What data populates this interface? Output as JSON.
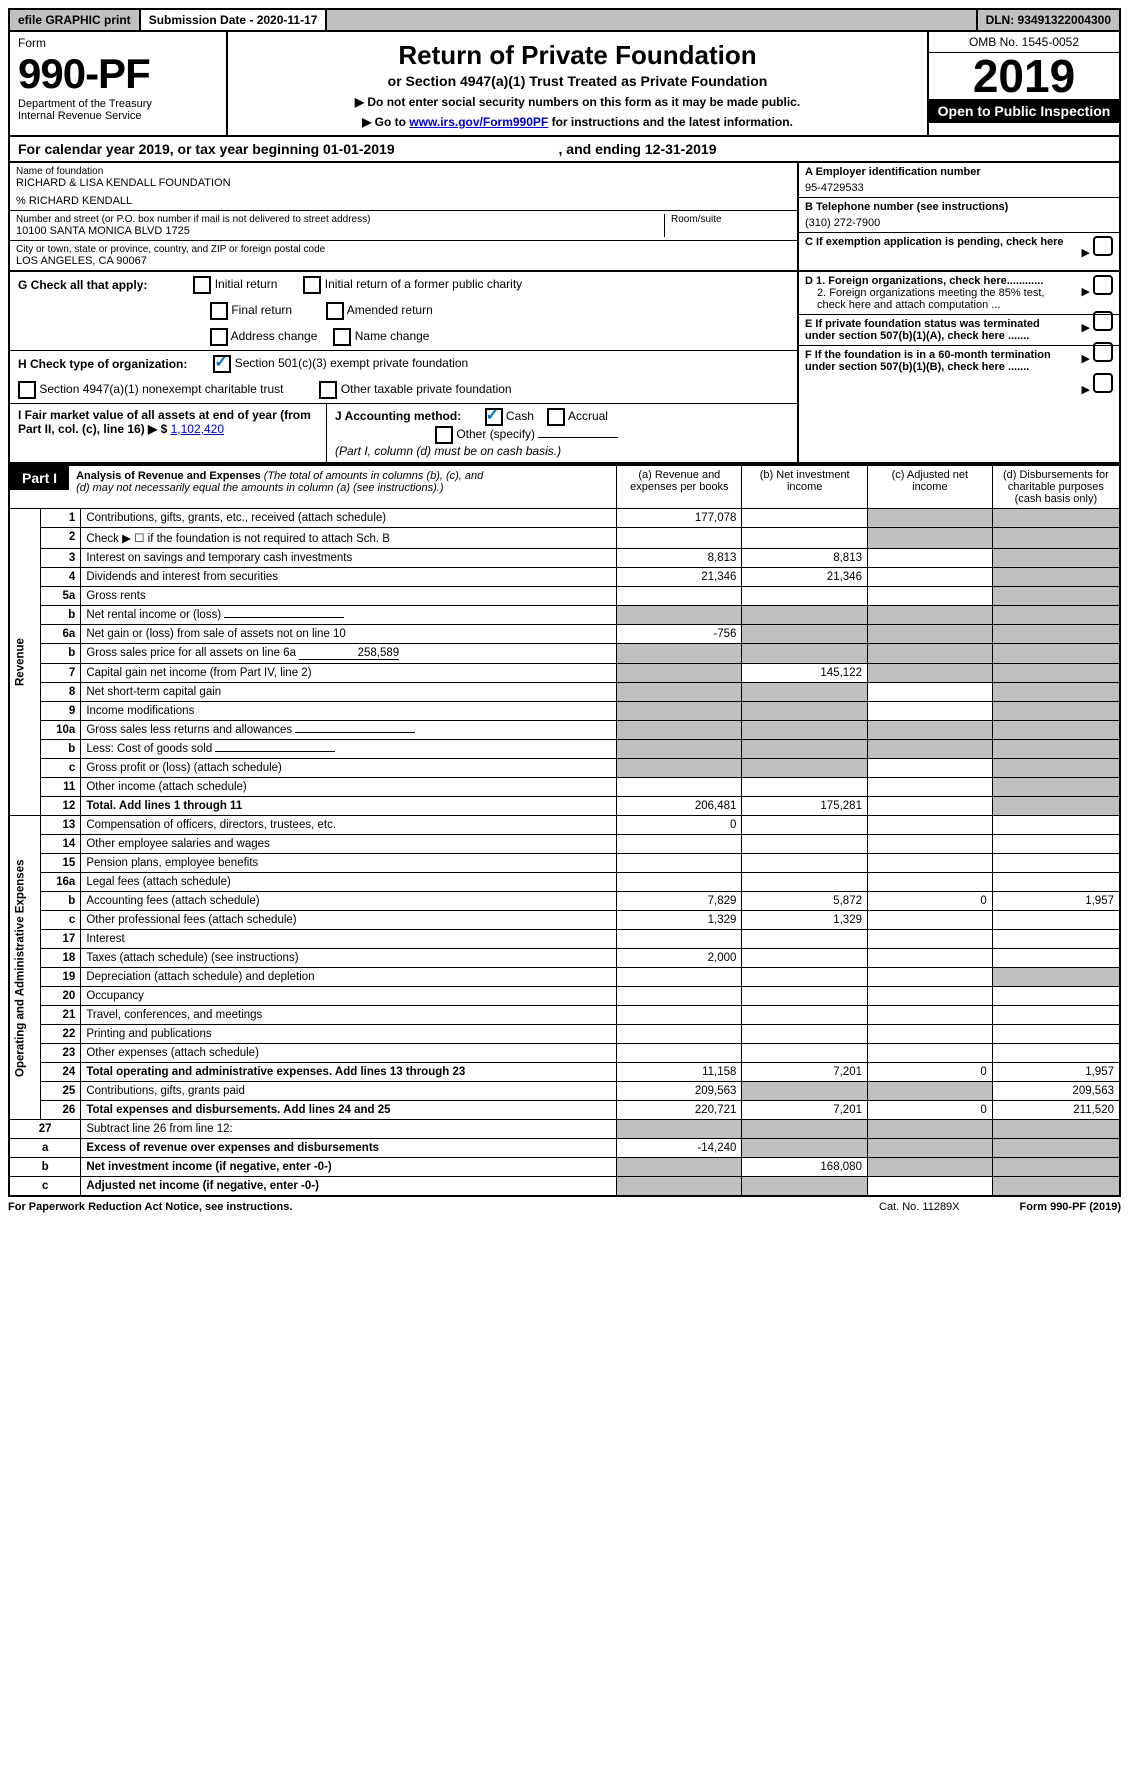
{
  "topbar": {
    "efile": "efile GRAPHIC print",
    "sub_label": "Submission Date - 2020-11-17",
    "dln": "DLN: 93491322004300"
  },
  "header": {
    "form": "Form",
    "form_num": "990-PF",
    "dept": "Department of the Treasury",
    "irs": "Internal Revenue Service",
    "title": "Return of Private Foundation",
    "subtitle": "or Section 4947(a)(1) Trust Treated as Private Foundation",
    "note1": "▶ Do not enter social security numbers on this form as it may be made public.",
    "note2_prefix": "▶ Go to ",
    "note2_link": "www.irs.gov/Form990PF",
    "note2_suffix": " for instructions and the latest information.",
    "omb": "OMB No. 1545-0052",
    "year": "2019",
    "open": "Open to Public Inspection"
  },
  "cal": {
    "text_pre": "For calendar year 2019, or tax year beginning ",
    "begin": "01-01-2019",
    "mid": " , and ending ",
    "end": "12-31-2019"
  },
  "entity": {
    "name_label": "Name of foundation",
    "name": "RICHARD & LISA KENDALL FOUNDATION",
    "care_of": "% RICHARD KENDALL",
    "addr_label": "Number and street (or P.O. box number if mail is not delivered to street address)",
    "addr": "10100 SANTA MONICA BLVD 1725",
    "room_label": "Room/suite",
    "city_label": "City or town, state or province, country, and ZIP or foreign postal code",
    "city": "LOS ANGELES, CA  90067",
    "ein_label": "A Employer identification number",
    "ein": "95-4729533",
    "phone_label": "B Telephone number (see instructions)",
    "phone": "(310) 272-7900",
    "c_label": "C If exemption application is pending, check here"
  },
  "checks": {
    "g_label": "G Check all that apply:",
    "g_opts": [
      "Initial return",
      "Initial return of a former public charity",
      "Final return",
      "Amended return",
      "Address change",
      "Name change"
    ],
    "h_label": "H Check type of organization:",
    "h_opt1": "Section 501(c)(3) exempt private foundation",
    "h_opt2": "Section 4947(a)(1) nonexempt charitable trust",
    "h_opt3": "Other taxable private foundation",
    "i_label": "I Fair market value of all assets at end of year (from Part II, col. (c), line 16) ▶ $",
    "i_val": "1,102,420",
    "j_label": "J Accounting method:",
    "j_cash": "Cash",
    "j_accrual": "Accrual",
    "j_other": "Other (specify)",
    "j_note": "(Part I, column (d) must be on cash basis.)",
    "d1": "D 1. Foreign organizations, check here............",
    "d2": "2. Foreign organizations meeting the 85% test, check here and attach computation ...",
    "e": "E If private foundation status was terminated under section 507(b)(1)(A), check here .......",
    "f": "F If the foundation is in a 60-month termination under section 507(b)(1)(B), check here ......."
  },
  "part1": {
    "label": "Part I",
    "title": "Analysis of Revenue and Expenses",
    "note": "(The total of amounts in columns (b), (c), and (d) may not necessarily equal the amounts in column (a) (see instructions).)",
    "col_a": "(a)   Revenue and expenses per books",
    "col_b": "(b)   Net investment income",
    "col_c": "(c)   Adjusted net income",
    "col_d": "(d)   Disbursements for charitable purposes (cash basis only)"
  },
  "sections": {
    "revenue": "Revenue",
    "expenses": "Operating and Administrative Expenses"
  },
  "rows": [
    {
      "n": "1",
      "d": "Contributions, gifts, grants, etc., received (attach schedule)",
      "a": "177,078",
      "b": "",
      "c": "s",
      "ds": "s"
    },
    {
      "n": "2",
      "d": "Check ▶ ☐ if the foundation is not required to attach Sch. B",
      "a": "",
      "b": "",
      "c": "s",
      "ds": "s",
      "nob": true
    },
    {
      "n": "3",
      "d": "Interest on savings and temporary cash investments",
      "a": "8,813",
      "b": "8,813",
      "c": "",
      "ds": "s"
    },
    {
      "n": "4",
      "d": "Dividends and interest from securities",
      "a": "21,346",
      "b": "21,346",
      "c": "",
      "ds": "s"
    },
    {
      "n": "5a",
      "d": "Gross rents",
      "a": "",
      "b": "",
      "c": "",
      "ds": "s"
    },
    {
      "n": "b",
      "d": "Net rental income or (loss)",
      "a": "s",
      "b": "s",
      "c": "s",
      "ds": "s",
      "inline": true
    },
    {
      "n": "6a",
      "d": "Net gain or (loss) from sale of assets not on line 10",
      "a": "-756",
      "b": "s",
      "c": "s",
      "ds": "s"
    },
    {
      "n": "b",
      "d": "Gross sales price for all assets on line 6a",
      "a": "s",
      "b": "s",
      "c": "s",
      "ds": "s",
      "inline": true,
      "ival": "258,589"
    },
    {
      "n": "7",
      "d": "Capital gain net income (from Part IV, line 2)",
      "a": "s",
      "b": "145,122",
      "c": "s",
      "ds": "s"
    },
    {
      "n": "8",
      "d": "Net short-term capital gain",
      "a": "s",
      "b": "s",
      "c": "",
      "ds": "s"
    },
    {
      "n": "9",
      "d": "Income modifications",
      "a": "s",
      "b": "s",
      "c": "",
      "ds": "s"
    },
    {
      "n": "10a",
      "d": "Gross sales less returns and allowances",
      "a": "s",
      "b": "s",
      "c": "s",
      "ds": "s",
      "inline": true
    },
    {
      "n": "b",
      "d": "Less: Cost of goods sold",
      "a": "s",
      "b": "s",
      "c": "s",
      "ds": "s",
      "inline": true
    },
    {
      "n": "c",
      "d": "Gross profit or (loss) (attach schedule)",
      "a": "s",
      "b": "s",
      "c": "",
      "ds": "s"
    },
    {
      "n": "11",
      "d": "Other income (attach schedule)",
      "a": "",
      "b": "",
      "c": "",
      "ds": "s"
    },
    {
      "n": "12",
      "d": "Total. Add lines 1 through 11",
      "a": "206,481",
      "b": "175,281",
      "c": "",
      "ds": "s",
      "bold": true
    }
  ],
  "exp_rows": [
    {
      "n": "13",
      "d": "Compensation of officers, directors, trustees, etc.",
      "a": "0",
      "b": "",
      "c": "",
      "ds": ""
    },
    {
      "n": "14",
      "d": "Other employee salaries and wages",
      "a": "",
      "b": "",
      "c": "",
      "ds": ""
    },
    {
      "n": "15",
      "d": "Pension plans, employee benefits",
      "a": "",
      "b": "",
      "c": "",
      "ds": ""
    },
    {
      "n": "16a",
      "d": "Legal fees (attach schedule)",
      "a": "",
      "b": "",
      "c": "",
      "ds": ""
    },
    {
      "n": "b",
      "d": "Accounting fees (attach schedule)",
      "a": "7,829",
      "b": "5,872",
      "c": "0",
      "ds": "1,957"
    },
    {
      "n": "c",
      "d": "Other professional fees (attach schedule)",
      "a": "1,329",
      "b": "1,329",
      "c": "",
      "ds": ""
    },
    {
      "n": "17",
      "d": "Interest",
      "a": "",
      "b": "",
      "c": "",
      "ds": ""
    },
    {
      "n": "18",
      "d": "Taxes (attach schedule) (see instructions)",
      "a": "2,000",
      "b": "",
      "c": "",
      "ds": ""
    },
    {
      "n": "19",
      "d": "Depreciation (attach schedule) and depletion",
      "a": "",
      "b": "",
      "c": "",
      "ds": "s"
    },
    {
      "n": "20",
      "d": "Occupancy",
      "a": "",
      "b": "",
      "c": "",
      "ds": ""
    },
    {
      "n": "21",
      "d": "Travel, conferences, and meetings",
      "a": "",
      "b": "",
      "c": "",
      "ds": ""
    },
    {
      "n": "22",
      "d": "Printing and publications",
      "a": "",
      "b": "",
      "c": "",
      "ds": ""
    },
    {
      "n": "23",
      "d": "Other expenses (attach schedule)",
      "a": "",
      "b": "",
      "c": "",
      "ds": ""
    },
    {
      "n": "24",
      "d": "Total operating and administrative expenses. Add lines 13 through 23",
      "a": "11,158",
      "b": "7,201",
      "c": "0",
      "ds": "1,957",
      "bold": true
    },
    {
      "n": "25",
      "d": "Contributions, gifts, grants paid",
      "a": "209,563",
      "b": "s",
      "c": "s",
      "ds": "209,563"
    },
    {
      "n": "26",
      "d": "Total expenses and disbursements. Add lines 24 and 25",
      "a": "220,721",
      "b": "7,201",
      "c": "0",
      "ds": "211,520",
      "bold": true
    }
  ],
  "sub_rows": [
    {
      "n": "27",
      "d": "Subtract line 26 from line 12:",
      "a": "s",
      "b": "s",
      "c": "s",
      "ds": "s"
    },
    {
      "n": "a",
      "d": "Excess of revenue over expenses and disbursements",
      "a": "-14,240",
      "b": "s",
      "c": "s",
      "ds": "s",
      "bold": true
    },
    {
      "n": "b",
      "d": "Net investment income (if negative, enter -0-)",
      "a": "s",
      "b": "168,080",
      "c": "s",
      "ds": "s",
      "bold": true
    },
    {
      "n": "c",
      "d": "Adjusted net income (if negative, enter -0-)",
      "a": "s",
      "b": "s",
      "c": "",
      "ds": "s",
      "bold": true
    }
  ],
  "footer": {
    "left": "For Paperwork Reduction Act Notice, see instructions.",
    "mid": "Cat. No. 11289X",
    "right": "Form 990-PF (2019)"
  }
}
